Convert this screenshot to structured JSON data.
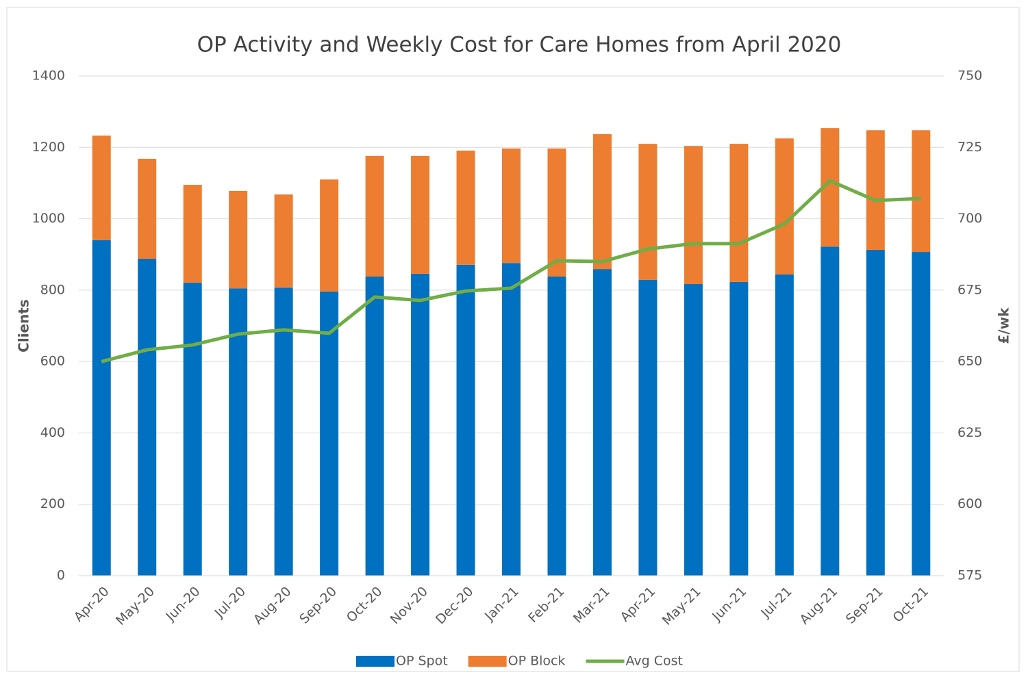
{
  "chart_data": {
    "type": "bar",
    "stacked": true,
    "title": "OP Activity and Weekly Cost for Care Homes from April 2020",
    "ylabel": "Clients",
    "y2label": "£/wk",
    "categories": [
      "Apr-20",
      "May-20",
      "Jun-20",
      "Jul-20",
      "Aug-20",
      "Sep-20",
      "Oct-20",
      "Nov-20",
      "Dec-20",
      "Jan-21",
      "Feb-21",
      "Mar-21",
      "Apr-21",
      "May-21",
      "Jun-21",
      "Jul-21",
      "Aug-21",
      "Sep-21",
      "Oct-21"
    ],
    "series": [
      {
        "name": "OP Spot",
        "type": "bar",
        "color": "#0070c0",
        "values": [
          940,
          888,
          821,
          805,
          807,
          796,
          838,
          846,
          871,
          876,
          838,
          859,
          829,
          817,
          823,
          844,
          922,
          913,
          907
        ]
      },
      {
        "name": "OP Block",
        "type": "bar",
        "color": "#ed7d31",
        "values": [
          293,
          280,
          274,
          273,
          261,
          314,
          338,
          330,
          320,
          321,
          359,
          378,
          381,
          387,
          387,
          381,
          332,
          335,
          341
        ]
      },
      {
        "name": "Avg Cost",
        "type": "line",
        "axis": "y2",
        "color": "#70ad47",
        "values": [
          650,
          654.1,
          655.8,
          659.6,
          661.1,
          659.9,
          672.6,
          671.4,
          674.7,
          675.7,
          685.3,
          685,
          689.4,
          691.3,
          691.3,
          698.2,
          713.3,
          706.4,
          707.1
        ]
      }
    ],
    "ylim": [
      0,
      1400
    ],
    "yticks": [
      0,
      200,
      400,
      600,
      800,
      1000,
      1200,
      1400
    ],
    "y2lim": [
      575,
      750
    ],
    "y2ticks": [
      575,
      600,
      625,
      650,
      675,
      700,
      725,
      750
    ],
    "grid": true,
    "legend": "bottom"
  }
}
